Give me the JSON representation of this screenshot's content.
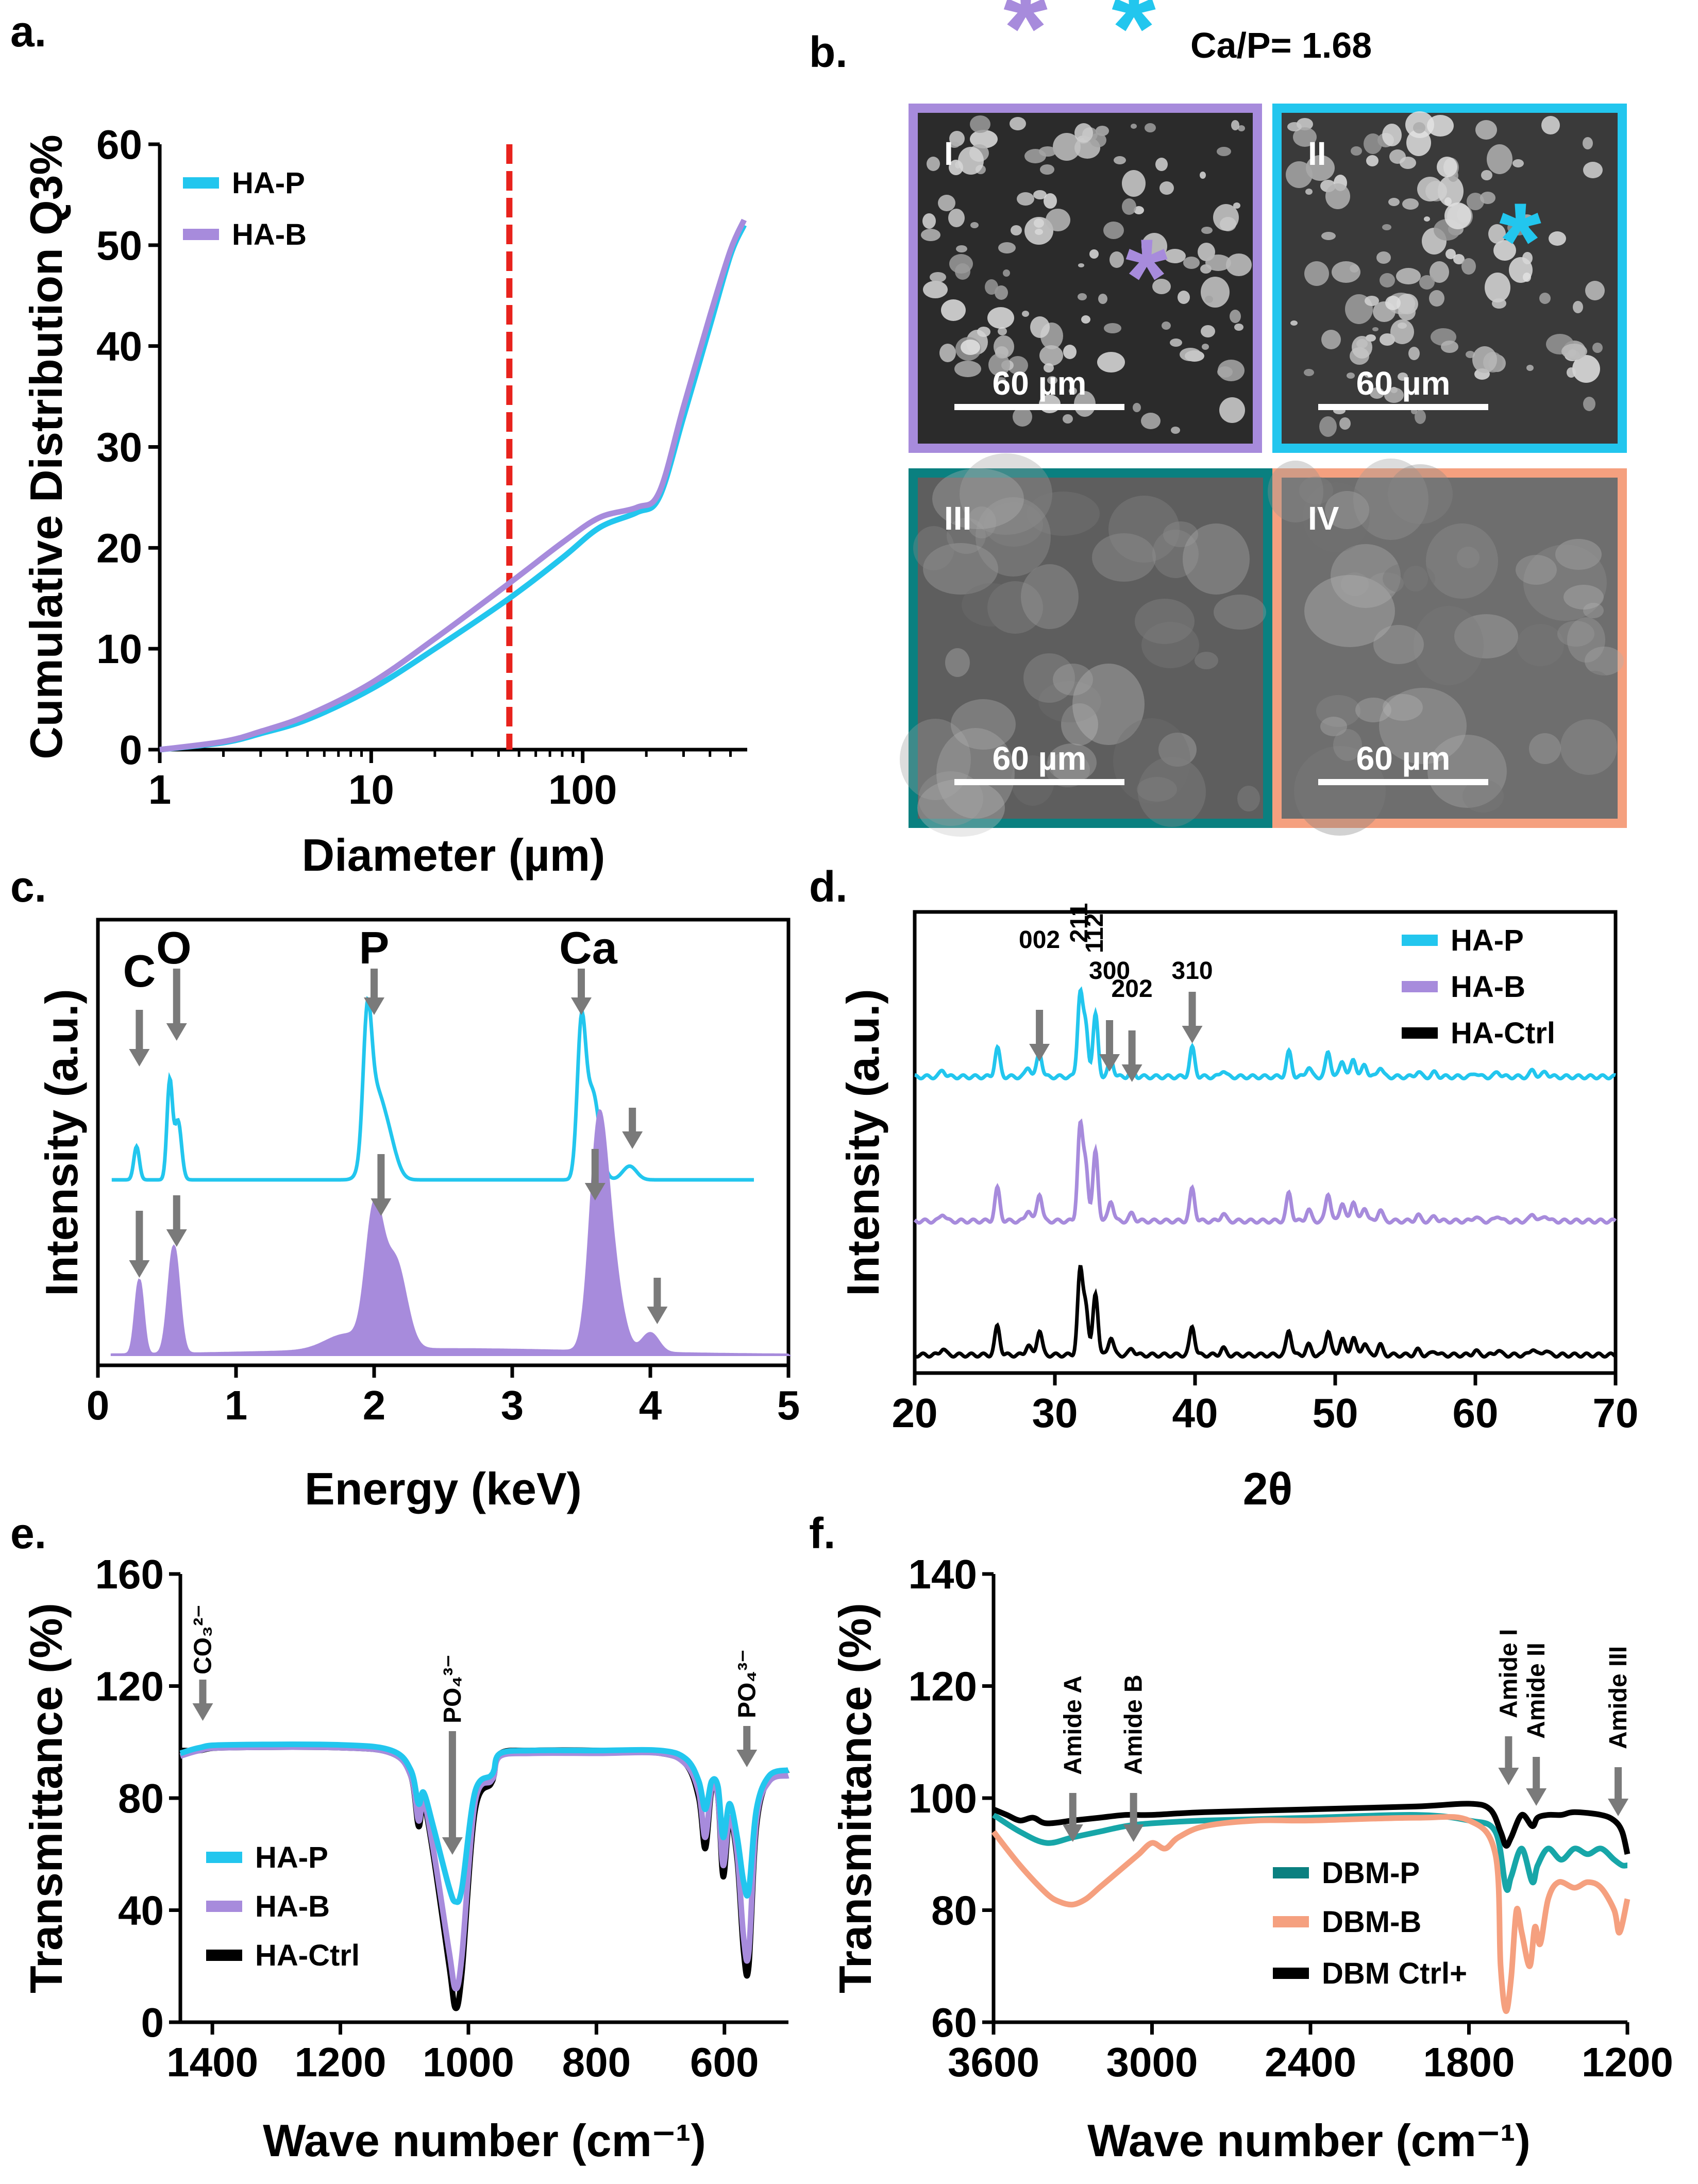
{
  "colors": {
    "cyan": "#22c6ee",
    "purple": "#a78bdc",
    "purple_dark": "#9a78d2",
    "black": "#000000",
    "red": "#e8221c",
    "teal": "#0a8080",
    "salmon": "#f5a07f",
    "teal_line": "#17a6a8",
    "arrow": "#7a7a7a"
  },
  "panel_labels": {
    "a": "a.",
    "b": "b.",
    "c": "c.",
    "d": "d.",
    "e": "e.",
    "f": "f."
  },
  "panel_b": {
    "caption": "Ca/P= 1.68",
    "marker_symbols": {
      "purple": "*",
      "cyan": "*"
    },
    "images": [
      {
        "label": "I",
        "scale": "60 µm",
        "border": "#a78bdc",
        "bg": "#2b2b2b"
      },
      {
        "label": "II",
        "scale": "60 µm",
        "border": "#22c6ee",
        "bg": "#3a3a3a"
      },
      {
        "label": "III",
        "scale": "60 µm",
        "border": "#0a8080",
        "bg": "#5e5e5e"
      },
      {
        "label": "IV",
        "scale": "60 µm",
        "border": "#f5a07f",
        "bg": "#6e6e6e"
      }
    ]
  },
  "chart_data": [
    {
      "id": "a",
      "type": "line",
      "xscale": "log",
      "xlabel": "Diameter (µm)",
      "ylabel": "Cumulative Distribution Q3%",
      "xlim": [
        1,
        600
      ],
      "ylim": [
        0,
        60
      ],
      "xticks": [
        1,
        10,
        100
      ],
      "xtick_labels": [
        "1",
        "10",
        "100"
      ],
      "yticks": [
        0,
        10,
        20,
        30,
        40,
        50,
        60
      ],
      "ytick_labels": [
        "0",
        "10",
        "20",
        "30",
        "40",
        "50",
        "60"
      ],
      "legend": [
        "HA-P",
        "HA-B"
      ],
      "vline": {
        "x": 45,
        "style": "dashed",
        "color": "#e8221c"
      },
      "series": [
        {
          "name": "HA-P",
          "color": "#22c6ee",
          "x": [
            1,
            2,
            3,
            5,
            10,
            20,
            45,
            80,
            120,
            180,
            230,
            300,
            400,
            500,
            580
          ],
          "y": [
            0,
            0.7,
            1.6,
            3,
            6,
            10,
            15,
            19,
            22,
            23.5,
            25,
            33,
            42,
            49,
            52
          ]
        },
        {
          "name": "HA-B",
          "color": "#a78bdc",
          "x": [
            1,
            2,
            3,
            5,
            10,
            20,
            45,
            80,
            120,
            180,
            230,
            300,
            400,
            500,
            580
          ],
          "y": [
            0,
            0.8,
            1.8,
            3.4,
            6.6,
            11,
            16.5,
            20.5,
            23,
            24,
            25.5,
            34,
            43,
            49.5,
            52.5
          ]
        }
      ]
    },
    {
      "id": "c",
      "type": "line",
      "xlabel": "Energy (keV)",
      "ylabel": "Intensity (a.u.)",
      "xlim": [
        0,
        5
      ],
      "xticks": [
        0,
        1,
        2,
        3,
        4,
        5
      ],
      "xtick_labels": [
        "0",
        "1",
        "2",
        "3",
        "4",
        "5"
      ],
      "element_labels": [
        {
          "text": "C",
          "x": 0.3
        },
        {
          "text": "O",
          "x": 0.55
        },
        {
          "text": "P",
          "x": 2.0
        },
        {
          "text": "Ca",
          "x": 3.55
        }
      ],
      "arrows_top": [
        0.3,
        0.57,
        2.0,
        3.5,
        3.87
      ],
      "arrows_bottom": [
        0.3,
        0.57,
        2.05,
        3.6,
        4.05
      ],
      "series": [
        {
          "name": "HA-P spectrum",
          "color": "#22c6ee",
          "fill": false,
          "offset": 1.0,
          "peaks": [
            [
              0.28,
              0.17,
              0.02
            ],
            [
              0.52,
              0.5,
              0.02
            ],
            [
              0.58,
              0.3,
              0.025
            ],
            [
              1.95,
              0.62,
              0.03
            ],
            [
              2.0,
              0.4,
              0.06
            ],
            [
              2.1,
              0.2,
              0.06
            ],
            [
              3.5,
              0.72,
              0.03
            ],
            [
              3.58,
              0.45,
              0.05
            ],
            [
              3.85,
              0.07,
              0.05
            ]
          ]
        },
        {
          "name": "HA-B spectrum",
          "color": "#a78bdc",
          "fill": true,
          "offset": 0.0,
          "peaks": [
            [
              0.3,
              0.38,
              0.03
            ],
            [
              0.55,
              0.55,
              0.04
            ],
            [
              2.0,
              0.65,
              0.06
            ],
            [
              2.15,
              0.45,
              0.08
            ],
            [
              1.8,
              0.08,
              0.15
            ],
            [
              3.62,
              0.9,
              0.06
            ],
            [
              3.7,
              0.5,
              0.08
            ],
            [
              4.0,
              0.1,
              0.06
            ]
          ]
        }
      ]
    },
    {
      "id": "d",
      "type": "line",
      "xlabel": "2θ",
      "ylabel": "Intensity (a.u.)",
      "xlim": [
        20,
        70
      ],
      "xticks": [
        20,
        30,
        40,
        50,
        60,
        70
      ],
      "xtick_labels": [
        "20",
        "30",
        "40",
        "50",
        "60",
        "70"
      ],
      "legend": [
        "HA-P",
        "HA-B",
        "HA-Ctrl"
      ],
      "miller_labels": [
        {
          "text": "002",
          "x": 28.9
        },
        {
          "text": "211",
          "x": 31.8
        },
        {
          "text": "112",
          "x": 32.3
        },
        {
          "text": "300",
          "x": 33.9
        },
        {
          "text": "202",
          "x": 35.5
        },
        {
          "text": "310",
          "x": 39.8
        }
      ],
      "peaks": [
        [
          22,
          0.08
        ],
        [
          25.9,
          0.35
        ],
        [
          28.1,
          0.12
        ],
        [
          28.9,
          0.3
        ],
        [
          31.8,
          1.0
        ],
        [
          32.2,
          0.6
        ],
        [
          32.9,
          0.75
        ],
        [
          34.0,
          0.22
        ],
        [
          35.5,
          0.08
        ],
        [
          39.8,
          0.35
        ],
        [
          42.0,
          0.08
        ],
        [
          46.7,
          0.3
        ],
        [
          48.1,
          0.12
        ],
        [
          49.5,
          0.3
        ],
        [
          50.5,
          0.2
        ],
        [
          51.3,
          0.22
        ],
        [
          52.1,
          0.15
        ],
        [
          53.2,
          0.12
        ],
        [
          55.9,
          0.06
        ],
        [
          57.1,
          0.05
        ],
        [
          60.0,
          0.05
        ],
        [
          61.6,
          0.06
        ],
        [
          64.1,
          0.08
        ],
        [
          65.0,
          0.06
        ]
      ],
      "series": [
        {
          "name": "HA-P",
          "color": "#22c6ee",
          "offset": 2.0,
          "scale": 0.55
        },
        {
          "name": "HA-B",
          "color": "#a78bdc",
          "offset": 1.0,
          "scale": 0.62
        },
        {
          "name": "HA-Ctrl",
          "color": "#000000",
          "offset": 0.0,
          "scale": 0.55
        }
      ]
    },
    {
      "id": "e",
      "type": "line",
      "xlabel": "Wave number (cm⁻¹)",
      "ylabel": "Transmittance (%)",
      "xlim": [
        1450,
        500
      ],
      "ylim": [
        0,
        160
      ],
      "xticks": [
        1400,
        1200,
        1000,
        800,
        600
      ],
      "xtick_labels": [
        "1400",
        "1200",
        "1000",
        "800",
        "600"
      ],
      "yticks": [
        0,
        40,
        80,
        120,
        160
      ],
      "ytick_labels": [
        "0",
        "40",
        "80",
        "120",
        "160"
      ],
      "legend": [
        "HA-P",
        "HA-B",
        "HA-Ctrl"
      ],
      "band_labels": [
        {
          "text": "CO₃²⁻",
          "x": 1415
        },
        {
          "text": "PO₄³⁻",
          "x": 1025
        },
        {
          "text": "PO₄³⁻",
          "x": 565
        }
      ],
      "series": [
        {
          "name": "HA-Ctrl",
          "color": "#000000",
          "x": [
            1450,
            1420,
            1380,
            1200,
            1120,
            1090,
            1078,
            1070,
            1055,
            1030,
            1020,
            1010,
            990,
            965,
            960,
            950,
            900,
            800,
            700,
            660,
            640,
            630,
            620,
            610,
            602,
            592,
            580,
            570,
            562,
            550,
            530,
            500
          ],
          "y": [
            97,
            97,
            98,
            98,
            96,
            88,
            70,
            78,
            60,
            20,
            5,
            18,
            75,
            85,
            88,
            96,
            97,
            97,
            96,
            92,
            80,
            62,
            83,
            80,
            52,
            72,
            58,
            25,
            20,
            70,
            87,
            90
          ]
        },
        {
          "name": "HA-B",
          "color": "#a78bdc",
          "x": [
            1450,
            1420,
            1380,
            1200,
            1120,
            1090,
            1078,
            1070,
            1055,
            1030,
            1020,
            1010,
            990,
            965,
            960,
            950,
            900,
            800,
            700,
            660,
            640,
            630,
            620,
            610,
            602,
            592,
            580,
            570,
            562,
            550,
            530,
            500
          ],
          "y": [
            95,
            97,
            98,
            98,
            96,
            88,
            72,
            79,
            62,
            25,
            12,
            24,
            78,
            86,
            88,
            95,
            96,
            96,
            96,
            92,
            82,
            66,
            84,
            80,
            56,
            73,
            60,
            30,
            25,
            72,
            86,
            88
          ]
        },
        {
          "name": "HA-P",
          "color": "#22c6ee",
          "x": [
            1450,
            1420,
            1380,
            1200,
            1120,
            1090,
            1078,
            1070,
            1055,
            1030,
            1020,
            1010,
            990,
            965,
            960,
            950,
            900,
            800,
            700,
            660,
            640,
            630,
            620,
            610,
            602,
            592,
            580,
            570,
            562,
            550,
            530,
            500
          ],
          "y": [
            96,
            98,
            99,
            99,
            97,
            90,
            78,
            82,
            70,
            48,
            43,
            48,
            82,
            88,
            90,
            96,
            97,
            97,
            97,
            94,
            86,
            76,
            86,
            84,
            66,
            78,
            66,
            50,
            47,
            76,
            88,
            90
          ]
        }
      ]
    },
    {
      "id": "f",
      "type": "line",
      "xlabel": "Wave number (cm⁻¹)",
      "ylabel": "Transmittance (%)",
      "xlim": [
        3600,
        1200
      ],
      "ylim": [
        60,
        140
      ],
      "xticks": [
        3600,
        3000,
        2400,
        1800,
        1200
      ],
      "xtick_labels": [
        "3600",
        "3000",
        "2400",
        "1800",
        "1200"
      ],
      "yticks": [
        60,
        80,
        100,
        120,
        140
      ],
      "ytick_labels": [
        "60",
        "80",
        "100",
        "120",
        "140"
      ],
      "legend": [
        "DBM-P",
        "DBM-B",
        "DBM Ctrl+"
      ],
      "band_labels": [
        {
          "text": "Amide A",
          "x": 3300
        },
        {
          "text": "Amide B",
          "x": 3070
        },
        {
          "text": "Amide I",
          "x": 1650
        },
        {
          "text": "Amide II",
          "x": 1545
        },
        {
          "text": "Amide III",
          "x": 1235
        }
      ],
      "series": [
        {
          "name": "DBM-P",
          "color": "#17a6a8",
          "x": [
            3600,
            3500,
            3400,
            3300,
            3200,
            3100,
            3000,
            2800,
            2400,
            2000,
            1800,
            1700,
            1660,
            1640,
            1600,
            1560,
            1540,
            1500,
            1450,
            1400,
            1350,
            1300,
            1250,
            1220,
            1200
          ],
          "y": [
            97,
            94,
            92,
            93,
            94,
            95,
            95.5,
            96,
            96.5,
            97,
            96,
            94,
            84,
            86,
            91,
            85,
            88,
            91,
            89,
            91,
            90,
            91,
            89,
            88,
            88
          ]
        },
        {
          "name": "DBM-B",
          "color": "#f5a07f",
          "x": [
            3600,
            3500,
            3400,
            3350,
            3300,
            3250,
            3200,
            3150,
            3100,
            3050,
            3000,
            2950,
            2900,
            2800,
            2600,
            2400,
            2000,
            1800,
            1700,
            1680,
            1660,
            1640,
            1620,
            1600,
            1570,
            1550,
            1530,
            1500,
            1460,
            1400,
            1350,
            1300,
            1250,
            1230,
            1200
          ],
          "y": [
            94,
            88,
            83,
            81.5,
            81,
            82,
            84,
            86,
            88,
            90,
            92,
            91,
            93,
            95,
            96,
            96,
            96.5,
            96,
            90,
            70,
            62,
            68,
            80,
            76,
            70,
            77,
            74,
            82,
            85,
            84,
            85,
            84,
            80,
            76,
            82
          ]
        },
        {
          "name": "DBM Ctrl+",
          "color": "#000000",
          "x": [
            3600,
            3550,
            3500,
            3450,
            3400,
            3300,
            3200,
            3100,
            3000,
            2800,
            2400,
            2000,
            1800,
            1720,
            1680,
            1660,
            1640,
            1600,
            1560,
            1540,
            1500,
            1450,
            1400,
            1300,
            1250,
            1220,
            1200
          ],
          "y": [
            98,
            97,
            96,
            96.5,
            95.5,
            96,
            96.5,
            97,
            97,
            97.5,
            98,
            98.5,
            99,
            98,
            94,
            91.5,
            93,
            97,
            95,
            96.5,
            97,
            97,
            97.5,
            97,
            96,
            94,
            90
          ]
        }
      ]
    }
  ]
}
